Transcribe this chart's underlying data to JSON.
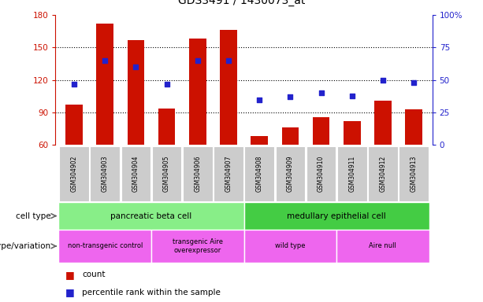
{
  "title": "GDS3491 / 1430073_at",
  "samples": [
    "GSM304902",
    "GSM304903",
    "GSM304904",
    "GSM304905",
    "GSM304906",
    "GSM304907",
    "GSM304908",
    "GSM304909",
    "GSM304910",
    "GSM304911",
    "GSM304912",
    "GSM304913"
  ],
  "counts": [
    97,
    172,
    157,
    94,
    158,
    166,
    68,
    76,
    86,
    82,
    101,
    93
  ],
  "percentiles": [
    47,
    65,
    60,
    47,
    65,
    65,
    35,
    37,
    40,
    38,
    50,
    48
  ],
  "ylim_left": [
    60,
    180
  ],
  "ylim_right": [
    0,
    100
  ],
  "yticks_left": [
    60,
    90,
    120,
    150,
    180
  ],
  "yticks_right": [
    0,
    25,
    50,
    75,
    100
  ],
  "ytick_right_labels": [
    "0",
    "25",
    "50",
    "75",
    "100%"
  ],
  "bar_color": "#CC1100",
  "dot_color": "#2222CC",
  "bar_bottom": 60,
  "cell_type_labels": [
    "pancreatic beta cell",
    "medullary epithelial cell"
  ],
  "cell_type_ranges": [
    [
      0,
      5
    ],
    [
      6,
      11
    ]
  ],
  "cell_type_color": "#88EE88",
  "cell_type_color2": "#44CC44",
  "genotype_labels": [
    "non-transgenic control",
    "transgenic Aire\noverexpressor",
    "wild type",
    "Aire null"
  ],
  "genotype_ranges": [
    [
      0,
      2
    ],
    [
      3,
      5
    ],
    [
      6,
      8
    ],
    [
      9,
      11
    ]
  ],
  "genotype_color": "#EE66EE",
  "legend_count_label": "count",
  "legend_pct_label": "percentile rank within the sample",
  "grid_lines": [
    90,
    120,
    150
  ],
  "xlabel_bg": "#CCCCCC"
}
